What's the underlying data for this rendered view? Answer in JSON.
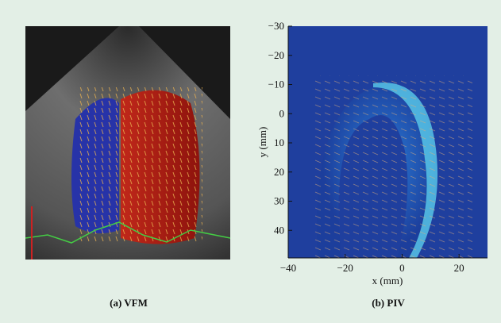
{
  "panels": [
    {
      "caption": "(a) VFM"
    },
    {
      "caption": "(b) PIV",
      "x_label": "x (mm)",
      "y_label": "y (mm)",
      "xlim": [
        -40,
        30
      ],
      "ylim": [
        -30,
        50
      ],
      "xticks": [
        {
          "value": -40,
          "label": "−40"
        },
        {
          "value": -20,
          "label": "−20"
        },
        0,
        20
      ],
      "yticks": [
        {
          "value": -30,
          "label": "−30"
        },
        {
          "value": -20,
          "label": "−20"
        },
        {
          "value": -10,
          "label": "−10"
        },
        0,
        10,
        20,
        30,
        40
      ]
    }
  ]
}
